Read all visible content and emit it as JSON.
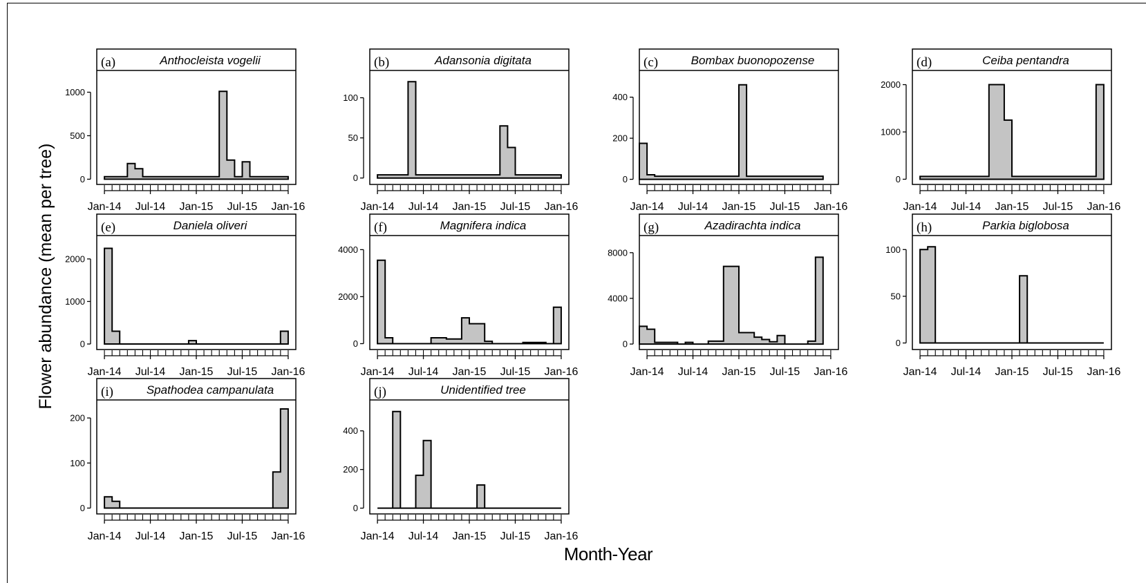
{
  "figure": {
    "ylabel": "Flower abundance (mean per tree)",
    "xlabel": "Month-Year"
  },
  "colors": {
    "fill": "#c4c4c4",
    "stroke": "#000000"
  },
  "chart_data": [
    {
      "type": "area",
      "letter": "(a)",
      "title": "Anthocleista vogelii",
      "x": [
        "Jan-14",
        "Feb-14",
        "Mar-14",
        "Apr-14",
        "May-14",
        "Jun-14",
        "Jul-14",
        "Aug-14",
        "Sep-14",
        "Oct-14",
        "Nov-14",
        "Dec-14",
        "Jan-15",
        "Feb-15",
        "Mar-15",
        "Apr-15",
        "May-15",
        "Jun-15",
        "Jul-15",
        "Aug-15",
        "Sep-15",
        "Oct-15",
        "Nov-15",
        "Dec-15"
      ],
      "values": [
        30,
        30,
        30,
        180,
        120,
        30,
        30,
        30,
        30,
        30,
        30,
        30,
        30,
        30,
        30,
        1010,
        220,
        30,
        200,
        30,
        30,
        30,
        30,
        30
      ],
      "xticks": [
        "Jan-14",
        "Jul-14",
        "Jan-15",
        "Jul-15",
        "Jan-16"
      ],
      "yticks": [
        0,
        500,
        1000
      ],
      "ylim": [
        -60,
        1250
      ]
    },
    {
      "type": "area",
      "letter": "(b)",
      "title": "Adansonia digitata",
      "x": [
        "Jan-14",
        "Feb-14",
        "Mar-14",
        "Apr-14",
        "May-14",
        "Jun-14",
        "Jul-14",
        "Aug-14",
        "Sep-14",
        "Oct-14",
        "Nov-14",
        "Dec-14",
        "Jan-15",
        "Feb-15",
        "Mar-15",
        "Apr-15",
        "May-15",
        "Jun-15",
        "Jul-15",
        "Aug-15",
        "Sep-15",
        "Oct-15",
        "Nov-15",
        "Dec-15"
      ],
      "values": [
        4,
        4,
        4,
        4,
        120,
        4,
        4,
        4,
        4,
        4,
        4,
        4,
        4,
        4,
        4,
        4,
        65,
        38,
        4,
        4,
        4,
        4,
        4,
        4
      ],
      "xticks": [
        "Jan-14",
        "Jul-14",
        "Jan-15",
        "Jul-15",
        "Jan-16"
      ],
      "yticks": [
        0,
        50,
        100
      ],
      "ylim": [
        -8,
        134
      ]
    },
    {
      "type": "area",
      "letter": "(c)",
      "title": "Bombax buonopozense",
      "x": [
        "Dec-13",
        "Jan-14",
        "Feb-14",
        "Mar-14",
        "Apr-14",
        "May-14",
        "Jun-14",
        "Jul-14",
        "Aug-14",
        "Sep-14",
        "Oct-14",
        "Nov-14",
        "Dec-14",
        "Jan-15",
        "Feb-15",
        "Mar-15",
        "Apr-15",
        "May-15",
        "Jun-15",
        "Jul-15",
        "Aug-15",
        "Sep-15",
        "Oct-15",
        "Nov-15"
      ],
      "values": [
        175,
        22,
        15,
        15,
        15,
        15,
        15,
        15,
        15,
        15,
        15,
        15,
        15,
        460,
        15,
        15,
        15,
        15,
        15,
        15,
        15,
        15,
        15,
        15
      ],
      "xticks": [
        "Jan-14",
        "Jul-14",
        "Jan-15",
        "Jul-15",
        "Jan-16"
      ],
      "yticks": [
        0,
        200,
        400
      ],
      "ylim": [
        -25,
        530
      ]
    },
    {
      "type": "area",
      "letter": "(d)",
      "title": "Ceiba pentandra",
      "x": [
        "Jan-14",
        "Feb-14",
        "Mar-14",
        "Apr-14",
        "May-14",
        "Jun-14",
        "Jul-14",
        "Aug-14",
        "Sep-14",
        "Oct-14",
        "Nov-14",
        "Dec-14",
        "Jan-15",
        "Feb-15",
        "Mar-15",
        "Apr-15",
        "May-15",
        "Jun-15",
        "Jul-15",
        "Aug-15",
        "Sep-15",
        "Oct-15",
        "Nov-15",
        "Dec-15"
      ],
      "values": [
        60,
        60,
        60,
        60,
        60,
        60,
        60,
        60,
        60,
        2000,
        2000,
        1250,
        60,
        60,
        60,
        60,
        60,
        60,
        60,
        60,
        60,
        60,
        60,
        2000
      ],
      "xticks": [
        "Jan-14",
        "Jul-14",
        "Jan-15",
        "Jul-15",
        "Jan-16"
      ],
      "yticks": [
        0,
        1000,
        2000
      ],
      "ylim": [
        -110,
        2300
      ]
    },
    {
      "type": "area",
      "letter": "(e)",
      "title": "Daniela oliveri",
      "x": [
        "Jan-14",
        "Feb-14",
        "Mar-14",
        "Apr-14",
        "May-14",
        "Jun-14",
        "Jul-14",
        "Aug-14",
        "Sep-14",
        "Oct-14",
        "Nov-14",
        "Dec-14",
        "Jan-15",
        "Feb-15",
        "Mar-15",
        "Apr-15",
        "May-15",
        "Jun-15",
        "Jul-15",
        "Aug-15",
        "Sep-15",
        "Oct-15",
        "Nov-15",
        "Dec-15"
      ],
      "values": [
        2250,
        300,
        0,
        0,
        0,
        0,
        0,
        0,
        0,
        0,
        0,
        80,
        0,
        0,
        0,
        0,
        0,
        0,
        0,
        0,
        0,
        0,
        0,
        300
      ],
      "xticks": [
        "Jan-14",
        "Jul-14",
        "Jan-15",
        "Jul-15",
        "Jan-16"
      ],
      "yticks": [
        0,
        1000,
        2000
      ],
      "ylim": [
        -130,
        2550
      ]
    },
    {
      "type": "area",
      "letter": "(f)",
      "title": "Magnifera indica",
      "x": [
        "Jan-14",
        "Feb-14",
        "Mar-14",
        "Apr-14",
        "May-14",
        "Jun-14",
        "Jul-14",
        "Aug-14",
        "Sep-14",
        "Oct-14",
        "Nov-14",
        "Dec-14",
        "Jan-15",
        "Feb-15",
        "Mar-15",
        "Apr-15",
        "May-15",
        "Jun-15",
        "Jul-15",
        "Aug-15",
        "Sep-15",
        "Oct-15",
        "Nov-15",
        "Dec-15"
      ],
      "values": [
        3550,
        250,
        0,
        0,
        0,
        0,
        0,
        250,
        250,
        200,
        200,
        1100,
        850,
        850,
        100,
        0,
        0,
        0,
        0,
        50,
        50,
        50,
        0,
        1550
      ],
      "xticks": [
        "Jan-14",
        "Jul-14",
        "Jan-15",
        "Jul-15",
        "Jan-16"
      ],
      "yticks": [
        0,
        2000,
        4000
      ],
      "ylim": [
        -250,
        4600
      ]
    },
    {
      "type": "area",
      "letter": "(g)",
      "title": "Azadirachta indica",
      "x": [
        "Dec-13",
        "Jan-14",
        "Feb-14",
        "Mar-14",
        "Apr-14",
        "May-14",
        "Jun-14",
        "Jul-14",
        "Aug-14",
        "Sep-14",
        "Oct-14",
        "Nov-14",
        "Dec-14",
        "Jan-15",
        "Feb-15",
        "Mar-15",
        "Apr-15",
        "May-15",
        "Jun-15",
        "Jul-15",
        "Aug-15",
        "Sep-15",
        "Oct-15",
        "Nov-15"
      ],
      "values": [
        1550,
        1300,
        150,
        150,
        150,
        0,
        150,
        0,
        0,
        250,
        250,
        6800,
        6800,
        1000,
        1000,
        600,
        400,
        200,
        750,
        0,
        0,
        0,
        250,
        7600
      ],
      "xticks": [
        "Jan-14",
        "Jul-14",
        "Jan-15",
        "Jul-15",
        "Jan-16"
      ],
      "yticks": [
        0,
        4000,
        8000
      ],
      "ylim": [
        -480,
        9500
      ]
    },
    {
      "type": "area",
      "letter": "(h)",
      "title": "Parkia biglobosa",
      "x": [
        "Jan-14",
        "Feb-14",
        "Mar-14",
        "Apr-14",
        "May-14",
        "Jun-14",
        "Jul-14",
        "Aug-14",
        "Sep-14",
        "Oct-14",
        "Nov-14",
        "Dec-14",
        "Jan-15",
        "Feb-15",
        "Mar-15",
        "Apr-15",
        "May-15",
        "Jun-15",
        "Jul-15",
        "Aug-15",
        "Sep-15",
        "Oct-15",
        "Nov-15",
        "Dec-15"
      ],
      "values": [
        100,
        103,
        0,
        0,
        0,
        0,
        0,
        0,
        0,
        0,
        0,
        0,
        0,
        72,
        0,
        0,
        0,
        0,
        0,
        0,
        0,
        0,
        0,
        0
      ],
      "xticks": [
        "Jan-14",
        "Jul-14",
        "Jan-15",
        "Jul-15",
        "Jan-16"
      ],
      "yticks": [
        0,
        50,
        100
      ],
      "ylim": [
        -7,
        115
      ]
    },
    {
      "type": "area",
      "letter": "(i)",
      "title": "Spathodea campanulata",
      "x": [
        "Jan-14",
        "Feb-14",
        "Mar-14",
        "Apr-14",
        "May-14",
        "Jun-14",
        "Jul-14",
        "Aug-14",
        "Sep-14",
        "Oct-14",
        "Nov-14",
        "Dec-14",
        "Jan-15",
        "Feb-15",
        "Mar-15",
        "Apr-15",
        "May-15",
        "Jun-15",
        "Jul-15",
        "Aug-15",
        "Sep-15",
        "Oct-15",
        "Nov-15",
        "Dec-15"
      ],
      "values": [
        25,
        15,
        0,
        0,
        0,
        0,
        0,
        0,
        0,
        0,
        0,
        0,
        0,
        0,
        0,
        0,
        0,
        0,
        0,
        0,
        0,
        0,
        80,
        220
      ],
      "xticks": [
        "Jan-14",
        "Jul-14",
        "Jan-15",
        "Jul-15",
        "Jan-16"
      ],
      "yticks": [
        0,
        100,
        200
      ],
      "ylim": [
        -13,
        240
      ]
    },
    {
      "type": "area",
      "letter": "(j)",
      "title": "Unidentified tree",
      "x": [
        "Jan-14",
        "Feb-14",
        "Mar-14",
        "Apr-14",
        "May-14",
        "Jun-14",
        "Jul-14",
        "Aug-14",
        "Sep-14",
        "Oct-14",
        "Nov-14",
        "Dec-14",
        "Jan-15",
        "Feb-15",
        "Mar-15",
        "Apr-15",
        "May-15",
        "Jun-15",
        "Jul-15",
        "Aug-15",
        "Sep-15",
        "Oct-15",
        "Nov-15",
        "Dec-15"
      ],
      "values": [
        0,
        0,
        500,
        0,
        0,
        170,
        350,
        0,
        0,
        0,
        0,
        0,
        0,
        120,
        0,
        0,
        0,
        0,
        0,
        0,
        0,
        0,
        0,
        0
      ],
      "xticks": [
        "Jan-14",
        "Jul-14",
        "Jan-15",
        "Jul-15",
        "Jan-16"
      ],
      "yticks": [
        0,
        200,
        400
      ],
      "ylim": [
        -30,
        560
      ]
    }
  ]
}
